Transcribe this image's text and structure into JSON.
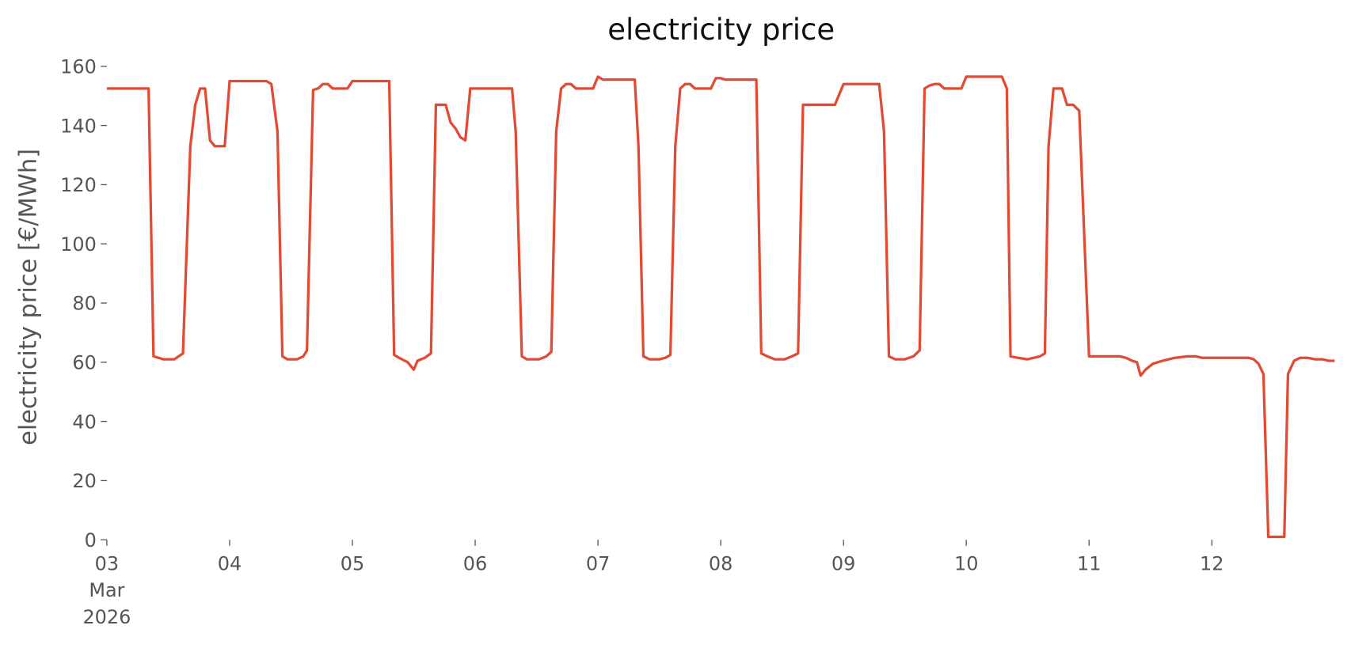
{
  "chart_data": {
    "type": "line",
    "title": "electricity price",
    "ylabel": "electricity price [€/MWh]",
    "color": "#e24a33",
    "x": [
      0,
      0.34,
      0.38,
      0.46,
      0.55,
      0.62,
      0.68,
      0.72,
      0.76,
      0.8,
      0.84,
      0.88,
      0.96,
      1.0,
      1.3,
      1.34,
      1.39,
      1.43,
      1.47,
      1.55,
      1.6,
      1.63,
      1.68,
      1.72,
      1.76,
      1.8,
      1.84,
      1.96,
      2.0,
      2.3,
      2.34,
      2.38,
      2.45,
      2.5,
      2.53,
      2.59,
      2.64,
      2.68,
      2.76,
      2.8,
      2.84,
      2.88,
      2.92,
      2.96,
      3.3,
      3.33,
      3.38,
      3.42,
      3.52,
      3.58,
      3.62,
      3.66,
      3.7,
      3.74,
      3.78,
      3.82,
      3.96,
      4.0,
      4.04,
      4.3,
      4.33,
      4.37,
      4.42,
      4.5,
      4.55,
      4.59,
      4.63,
      4.67,
      4.71,
      4.75,
      4.79,
      4.92,
      4.96,
      5.0,
      5.04,
      5.29,
      5.33,
      5.38,
      5.44,
      5.52,
      5.58,
      5.63,
      5.67,
      5.93,
      6.0,
      6.29,
      6.33,
      6.37,
      6.42,
      6.5,
      6.57,
      6.62,
      6.66,
      6.7,
      6.74,
      6.78,
      6.82,
      6.96,
      7.0,
      7.29,
      7.33,
      7.36,
      7.42,
      7.5,
      7.55,
      7.6,
      7.64,
      7.67,
      7.71,
      7.78,
      7.82,
      7.87,
      7.92,
      8.0,
      8.25,
      8.3,
      8.35,
      8.39,
      8.42,
      8.46,
      8.52,
      8.6,
      8.7,
      8.8,
      8.87,
      8.92,
      9.3,
      9.34,
      9.38,
      9.42,
      9.46,
      9.59,
      9.62,
      9.67,
      9.72,
      9.78,
      9.84,
      9.9,
      9.95,
      10.0
    ],
    "values": [
      152.5,
      152.5,
      62,
      61,
      61,
      63,
      133,
      147,
      152.5,
      152.5,
      135,
      133,
      133,
      155,
      155,
      154,
      138,
      62,
      61,
      61,
      62,
      64,
      152,
      152.5,
      154,
      154,
      152.5,
      152.5,
      155,
      155,
      62.5,
      61.5,
      60,
      57.5,
      60.5,
      61.5,
      63,
      147,
      147,
      141,
      139,
      136,
      135,
      152.5,
      152.5,
      138,
      62,
      61,
      61,
      62,
      63.5,
      138,
      152.5,
      154,
      154,
      152.5,
      152.5,
      156.5,
      155.5,
      155.5,
      133,
      62,
      61,
      61,
      61.5,
      62.5,
      133,
      152.5,
      154,
      154,
      152.5,
      152.5,
      156,
      156,
      155.5,
      155.5,
      63,
      62,
      61,
      61,
      62,
      63,
      147,
      147,
      154,
      154,
      138,
      62,
      61,
      61,
      62,
      64,
      152.5,
      153.5,
      154,
      154,
      152.5,
      152.5,
      156.5,
      156.5,
      152.5,
      62,
      61.5,
      61,
      61.5,
      62,
      63,
      133,
      152.5,
      152.5,
      147,
      147,
      145,
      62,
      62,
      61.5,
      60.5,
      60,
      55.5,
      57.5,
      59.5,
      60.5,
      61.5,
      62,
      62,
      61.5,
      61.5,
      61,
      59.5,
      56,
      1,
      1,
      56,
      60.5,
      61.5,
      61.5,
      61,
      61,
      60.5,
      60.5
    ],
    "xlim": [
      0,
      10
    ],
    "xticks": [
      {
        "value": 0,
        "label": "03\nMar\n2026"
      },
      {
        "value": 1,
        "label": "04"
      },
      {
        "value": 2,
        "label": "05"
      },
      {
        "value": 3,
        "label": "06"
      },
      {
        "value": 4,
        "label": "07"
      },
      {
        "value": 5,
        "label": "08"
      },
      {
        "value": 6,
        "label": "09"
      },
      {
        "value": 7,
        "label": "10"
      },
      {
        "value": 8,
        "label": "11"
      },
      {
        "value": 9,
        "label": "12"
      }
    ],
    "ylim": [
      0,
      160
    ],
    "yticks": [
      0,
      20,
      40,
      60,
      80,
      100,
      120,
      140,
      160
    ]
  }
}
